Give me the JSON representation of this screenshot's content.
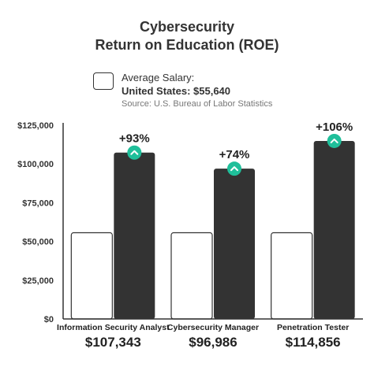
{
  "title_line1": "Cybersecurity",
  "title_line2": "Return on Education (ROE)",
  "legend": {
    "label": "Average Salary:",
    "value": "United States: $55,640",
    "source": "Source: U.S. Bureau of Labor Statistics"
  },
  "colors": {
    "baseline_bar": "#ffffff",
    "role_bar": "#333333",
    "badge": "#1fbf9a",
    "axis": "#333333"
  },
  "icon": "chevron-up-icon",
  "chart_data": {
    "type": "bar",
    "categories": [
      "Information Security Analyst",
      "Cybersecurity Manager",
      "Penetration Tester"
    ],
    "category_values": [
      "$107,343",
      "$96,986",
      "$114,856"
    ],
    "series": [
      {
        "values": [
          55640,
          55640,
          55640
        ]
      },
      {
        "values": [
          107343,
          96986,
          114856
        ]
      }
    ],
    "annotations": [
      "+93%",
      "+74%",
      "+106%"
    ],
    "ylim": [
      0,
      125000
    ],
    "yticks": [
      0,
      25000,
      50000,
      75000,
      100000,
      125000
    ],
    "ytick_labels": [
      "$0",
      "$25,000",
      "$50,000",
      "$75,000",
      "$100,000",
      "$125,000"
    ]
  }
}
